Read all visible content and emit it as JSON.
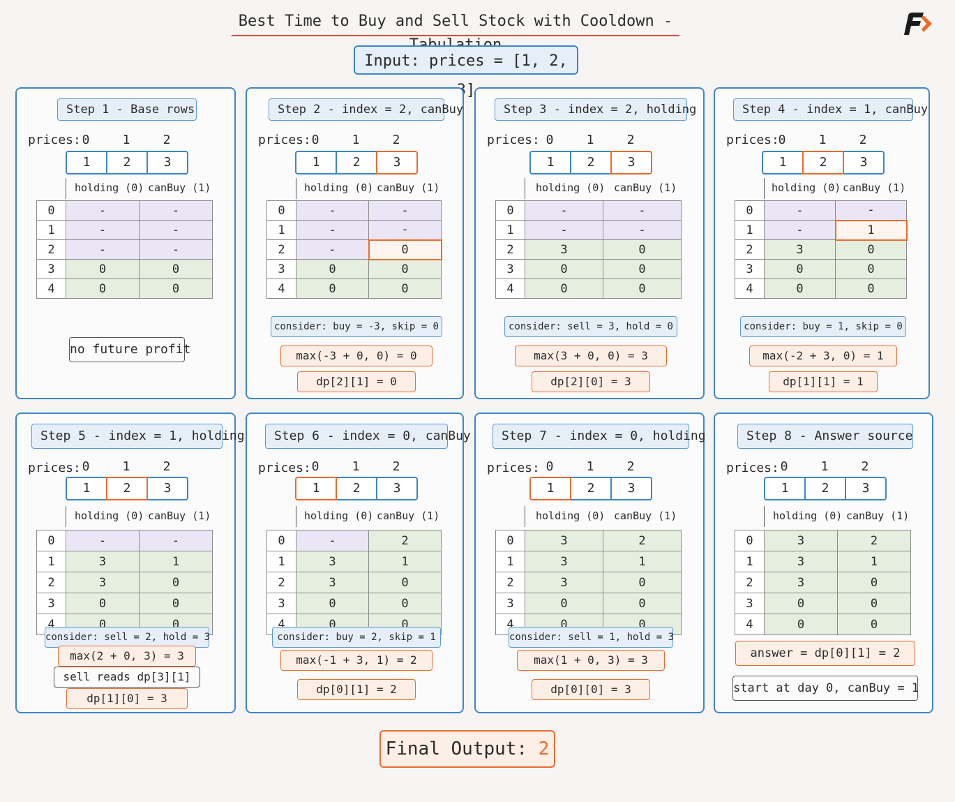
{
  "title": "Best Time to Buy and Sell Stock with Cooldown - Tabulation",
  "input_label": "Input:  prices = [1, 2, 3]",
  "prices_label": "prices:",
  "indices": [
    "0",
    "1",
    "2"
  ],
  "prices": [
    "1",
    "2",
    "3"
  ],
  "col_holding": "holding (0)",
  "col_canbuy": "canBuy (1)",
  "row_labels": [
    "0",
    "1",
    "2",
    "3",
    "4"
  ],
  "final_label": "Final Output: ",
  "final_value": "2",
  "colors": {
    "blue": "#3d86cc",
    "orange": "#ec6b2d",
    "purple_cell": "#ebe6f6",
    "green_cell": "#e6efdf"
  },
  "steps": [
    {
      "title": "Step 1 - Base rows",
      "price_highlight": -1,
      "table": [
        [
          "-",
          "-"
        ],
        [
          "-",
          "-"
        ],
        [
          "-",
          "-"
        ],
        [
          "0",
          "0"
        ],
        [
          "0",
          "0"
        ]
      ],
      "cell_highlight": null,
      "notes": [
        {
          "text": "no future profit",
          "style": "gray"
        }
      ]
    },
    {
      "title": "Step 2 - index = 2, canBuy",
      "price_highlight": 2,
      "table": [
        [
          "-",
          "-"
        ],
        [
          "-",
          "-"
        ],
        [
          "-",
          "0"
        ],
        [
          "0",
          "0"
        ],
        [
          "0",
          "0"
        ]
      ],
      "cell_highlight": [
        2,
        1
      ],
      "notes": [
        {
          "text": "consider: buy = -3, skip = 0",
          "style": "blue"
        },
        {
          "text": "max(-3 + 0, 0) = 0",
          "style": "orange"
        },
        {
          "text": "dp[2][1] = 0",
          "style": "orange"
        }
      ]
    },
    {
      "title": "Step 3 - index = 2, holding",
      "price_highlight": 2,
      "table": [
        [
          "-",
          "-"
        ],
        [
          "-",
          "-"
        ],
        [
          "3",
          "0"
        ],
        [
          "0",
          "0"
        ],
        [
          "0",
          "0"
        ]
      ],
      "cell_highlight": null,
      "notes": [
        {
          "text": "consider: sell = 3, hold = 0",
          "style": "blue"
        },
        {
          "text": "max(3 + 0, 0) = 3",
          "style": "orange"
        },
        {
          "text": "dp[2][0] = 3",
          "style": "orange"
        }
      ]
    },
    {
      "title": "Step 4 - index = 1, canBuy",
      "price_highlight": 1,
      "table": [
        [
          "-",
          "-"
        ],
        [
          "-",
          "1"
        ],
        [
          "3",
          "0"
        ],
        [
          "0",
          "0"
        ],
        [
          "0",
          "0"
        ]
      ],
      "cell_highlight": [
        1,
        1
      ],
      "notes": [
        {
          "text": "consider: buy = 1, skip = 0",
          "style": "blue"
        },
        {
          "text": "max(-2 + 3, 0) = 1",
          "style": "orange"
        },
        {
          "text": "dp[1][1] = 1",
          "style": "orange"
        }
      ]
    },
    {
      "title": "Step 5 - index = 1, holding",
      "price_highlight": 1,
      "table": [
        [
          "-",
          "-"
        ],
        [
          "3",
          "1"
        ],
        [
          "3",
          "0"
        ],
        [
          "0",
          "0"
        ],
        [
          "0",
          "0"
        ]
      ],
      "cell_highlight": null,
      "notes": [
        {
          "text": "consider: sell = 2, hold = 3",
          "style": "blue"
        },
        {
          "text": "max(2 + 0, 3) = 3",
          "style": "orange"
        },
        {
          "text": "sell reads dp[3][1]",
          "style": "gray"
        },
        {
          "text": "dp[1][0] = 3",
          "style": "orange"
        }
      ]
    },
    {
      "title": "Step 6 - index = 0, canBuy",
      "price_highlight": 0,
      "table": [
        [
          "-",
          "2"
        ],
        [
          "3",
          "1"
        ],
        [
          "3",
          "0"
        ],
        [
          "0",
          "0"
        ],
        [
          "0",
          "0"
        ]
      ],
      "cell_highlight": null,
      "notes": [
        {
          "text": "consider: buy = 2, skip = 1",
          "style": "blue"
        },
        {
          "text": "max(-1 + 3, 1) = 2",
          "style": "orange"
        },
        {
          "text": "dp[0][1] = 2",
          "style": "orange"
        }
      ]
    },
    {
      "title": "Step 7 - index = 0, holding",
      "price_highlight": 0,
      "table": [
        [
          "3",
          "2"
        ],
        [
          "3",
          "1"
        ],
        [
          "3",
          "0"
        ],
        [
          "0",
          "0"
        ],
        [
          "0",
          "0"
        ]
      ],
      "cell_highlight": null,
      "notes": [
        {
          "text": "consider: sell = 1, hold = 3",
          "style": "blue"
        },
        {
          "text": "max(1 + 0, 3) = 3",
          "style": "orange"
        },
        {
          "text": "dp[0][0] = 3",
          "style": "orange"
        }
      ]
    },
    {
      "title": "Step 8 - Answer source",
      "price_highlight": -1,
      "table": [
        [
          "3",
          "2"
        ],
        [
          "3",
          "1"
        ],
        [
          "3",
          "0"
        ],
        [
          "0",
          "0"
        ],
        [
          "0",
          "0"
        ]
      ],
      "cell_highlight": null,
      "notes": [
        {
          "text": "answer = dp[0][1] = 2",
          "style": "orange"
        },
        {
          "text": "start at day 0, canBuy = 1",
          "style": "gray"
        }
      ]
    }
  ]
}
